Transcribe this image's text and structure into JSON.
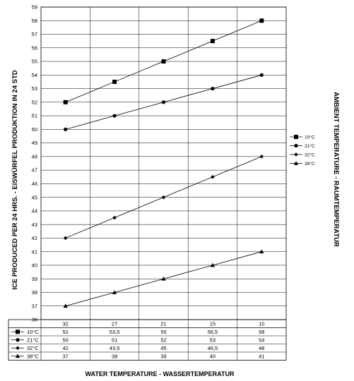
{
  "chart_data": {
    "type": "line",
    "xlabel": "WATER TEMPERATURE - WASSERTEMPERATUR",
    "ylabel": "ICE PRODUCED PER 24 HRS. - EISWÜRFEL PRODUKTION IN 24 STD",
    "legend_title": "AMBIENT TEMPERATURE - RAUMTEMPERATUR",
    "legend_position": "right",
    "grid": true,
    "categories": [
      "32",
      "27",
      "21",
      "15",
      "10"
    ],
    "ylim": [
      36,
      59
    ],
    "yticks": [
      36,
      37,
      38,
      39,
      40,
      41,
      42,
      43,
      44,
      45,
      46,
      47,
      48,
      49,
      50,
      51,
      52,
      53,
      54,
      55,
      56,
      57,
      58,
      59
    ],
    "series": [
      {
        "name": "10°C",
        "marker": "square",
        "values": [
          52,
          53.5,
          55,
          56.5,
          58
        ],
        "labels": [
          "52",
          "53,5",
          "55",
          "56,5",
          "58"
        ]
      },
      {
        "name": "21°C",
        "marker": "circle",
        "values": [
          50,
          51,
          52,
          53,
          54
        ],
        "labels": [
          "50",
          "51",
          "52",
          "53",
          "54"
        ]
      },
      {
        "name": "32°C",
        "marker": "diamond",
        "values": [
          42,
          43.5,
          45,
          46.5,
          48
        ],
        "labels": [
          "42",
          "43,5",
          "45",
          "46,5",
          "48"
        ]
      },
      {
        "name": "38°C",
        "marker": "triangle",
        "values": [
          37,
          38,
          39,
          40,
          41
        ],
        "labels": [
          "37",
          "38",
          "39",
          "40",
          "41"
        ]
      }
    ]
  }
}
